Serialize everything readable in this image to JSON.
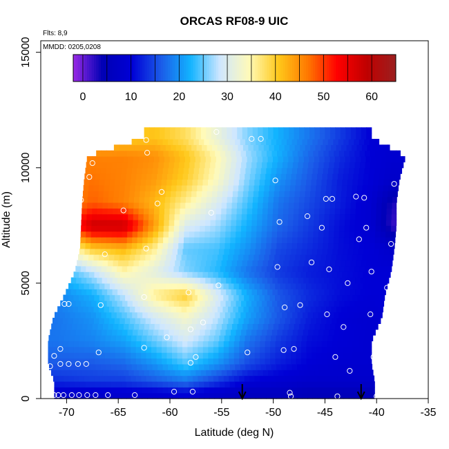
{
  "chart_data": {
    "type": "heatmap",
    "title": "ORCAS RF08-9 UIC",
    "annotations": [
      "Flts: 8,9",
      "MMDD: 0205,0208"
    ],
    "xlabel": "Latitude (deg N)",
    "ylabel": "Altitude (m)",
    "xlim": [
      -72.5,
      -35
    ],
    "ylim": [
      0,
      15500
    ],
    "x_ticks": [
      -70,
      -65,
      -60,
      -55,
      -50,
      -45,
      -40,
      -35
    ],
    "y_ticks": [
      0,
      5000,
      10000,
      15000
    ],
    "colorbar": {
      "range": [
        -2,
        65
      ],
      "ticks": [
        0,
        10,
        20,
        30,
        40,
        50,
        60
      ],
      "colors": [
        "#9a2be6",
        "#0000b4",
        "#0000d6",
        "#1b5ce8",
        "#12b4ff",
        "#cfe7ff",
        "#fffab8",
        "#ffc81a",
        "#ff7800",
        "#ff0000",
        "#c00000",
        "#9b2020"
      ]
    },
    "arrows": [
      -53,
      -41.5
    ],
    "field": {
      "x": [
        -71,
        -67.5,
        -64.5,
        -61.5,
        -58.5,
        -55.5,
        -52.5,
        -49.5,
        -46.5,
        -43.5,
        -40.5,
        -38.5
      ],
      "y": [
        250,
        750,
        1500,
        2500,
        3500,
        4500,
        5500,
        6500,
        7500,
        8500,
        9500,
        10500,
        11300
      ],
      "values": [
        [
          8,
          8,
          9,
          9,
          10,
          8,
          6,
          6,
          5,
          5,
          5,
          8
        ],
        [
          13,
          14,
          14,
          16,
          18,
          14,
          10,
          9,
          8,
          8,
          8,
          9
        ],
        [
          16,
          16,
          17,
          20,
          24,
          20,
          15,
          12,
          10,
          9,
          9,
          10
        ],
        [
          18,
          19,
          21,
          25,
          29,
          25,
          18,
          14,
          11,
          10,
          9,
          10
        ],
        [
          18,
          20,
          24,
          29,
          33,
          28,
          21,
          16,
          12,
          10,
          9,
          10
        ],
        [
          19,
          22,
          28,
          36,
          40,
          30,
          22,
          16,
          13,
          11,
          10,
          10
        ],
        [
          22,
          28,
          35,
          31,
          26,
          23,
          18,
          14,
          12,
          11,
          10,
          10
        ],
        [
          30,
          40,
          42,
          36,
          25,
          24,
          20,
          15,
          13,
          11,
          10,
          8
        ],
        [
          45,
          58,
          58,
          44,
          30,
          27,
          22,
          17,
          14,
          11,
          9,
          2
        ],
        [
          44,
          48,
          46,
          42,
          36,
          30,
          24,
          18,
          15,
          12,
          9,
          3
        ],
        [
          45,
          47,
          46,
          44,
          40,
          34,
          26,
          20,
          16,
          12,
          10,
          8
        ],
        [
          44,
          46,
          46,
          45,
          41,
          35,
          27,
          22,
          17,
          13,
          10,
          9
        ],
        [
          36,
          38,
          40,
          41,
          38,
          32,
          26,
          22,
          18,
          14,
          10,
          9
        ]
      ],
      "row_bounds": [
        [
          -71.2,
          -40.2
        ],
        [
          -71.2,
          -40.2
        ],
        [
          -71.8,
          -40.5
        ],
        [
          -71.8,
          -40.5
        ],
        [
          -71.3,
          -39.5
        ],
        [
          -70.2,
          -39.2
        ],
        [
          -69.2,
          -38.6
        ],
        [
          -68.7,
          -38.3
        ],
        [
          -68.6,
          -38.1
        ],
        [
          -68.5,
          -38.1
        ],
        [
          -68.3,
          -37.8
        ],
        [
          -68.0,
          -37.2
        ],
        [
          -62.5,
          -40.5
        ]
      ]
    },
    "points": [
      [
        -71.2,
        150
      ],
      [
        -70.8,
        150
      ],
      [
        -70.3,
        150
      ],
      [
        -69.5,
        150
      ],
      [
        -68.8,
        150
      ],
      [
        -68.0,
        150
      ],
      [
        -67.2,
        150
      ],
      [
        -66.0,
        150
      ],
      [
        -63.4,
        150
      ],
      [
        -59.6,
        300
      ],
      [
        -57.8,
        300
      ],
      [
        -48.4,
        250
      ],
      [
        -48.3,
        100
      ],
      [
        -43.8,
        100
      ],
      [
        -40.0,
        100
      ],
      [
        -39.8,
        1000
      ],
      [
        -42.6,
        1200
      ],
      [
        -44.0,
        1800
      ],
      [
        -40.3,
        1800
      ],
      [
        -39.5,
        2900
      ],
      [
        -71.6,
        1400
      ],
      [
        -70.6,
        1500
      ],
      [
        -69.8,
        1500
      ],
      [
        -68.9,
        1500
      ],
      [
        -68.1,
        1500
      ],
      [
        -71.2,
        1850
      ],
      [
        -70.6,
        2150
      ],
      [
        -66.9,
        2000
      ],
      [
        -62.5,
        2200
      ],
      [
        -57.5,
        1800
      ],
      [
        -58.0,
        1550
      ],
      [
        -52.5,
        2000
      ],
      [
        -49.0,
        2100
      ],
      [
        -48.0,
        2150
      ],
      [
        -60.3,
        2650
      ],
      [
        -58.0,
        3000
      ],
      [
        -56.8,
        3300
      ],
      [
        -43.2,
        3100
      ],
      [
        -40.6,
        3650
      ],
      [
        -44.8,
        3650
      ],
      [
        -70.2,
        4100
      ],
      [
        -69.8,
        4100
      ],
      [
        -66.7,
        4050
      ],
      [
        -62.5,
        4400
      ],
      [
        -58.2,
        4600
      ],
      [
        -55.3,
        4900
      ],
      [
        -48.9,
        3950
      ],
      [
        -47.4,
        4050
      ],
      [
        -42.8,
        5000
      ],
      [
        -40.5,
        5500
      ],
      [
        -44.6,
        5600
      ],
      [
        -46.3,
        5900
      ],
      [
        -49.6,
        5700
      ],
      [
        -39.0,
        4800
      ],
      [
        -38.6,
        6700
      ],
      [
        -66.3,
        6250
      ],
      [
        -62.3,
        6500
      ],
      [
        -41.7,
        6900
      ],
      [
        -41.0,
        7400
      ],
      [
        -45.3,
        7400
      ],
      [
        -46.7,
        7900
      ],
      [
        -49.4,
        7650
      ],
      [
        -56.0,
        8050
      ],
      [
        -64.5,
        8150
      ],
      [
        -68.6,
        8600
      ],
      [
        -61.2,
        8450
      ],
      [
        -60.8,
        8950
      ],
      [
        -44.9,
        8650
      ],
      [
        -44.3,
        8650
      ],
      [
        -42.0,
        8750
      ],
      [
        -41.2,
        8700
      ],
      [
        -49.8,
        9450
      ],
      [
        -38.3,
        9300
      ],
      [
        -62.2,
        10650
      ],
      [
        -62.3,
        11200
      ],
      [
        -52.1,
        11250
      ],
      [
        -51.2,
        11250
      ],
      [
        -55.5,
        11550
      ],
      [
        -67.8,
        9600
      ],
      [
        -67.9,
        10800
      ],
      [
        -67.5,
        10200
      ]
    ]
  }
}
